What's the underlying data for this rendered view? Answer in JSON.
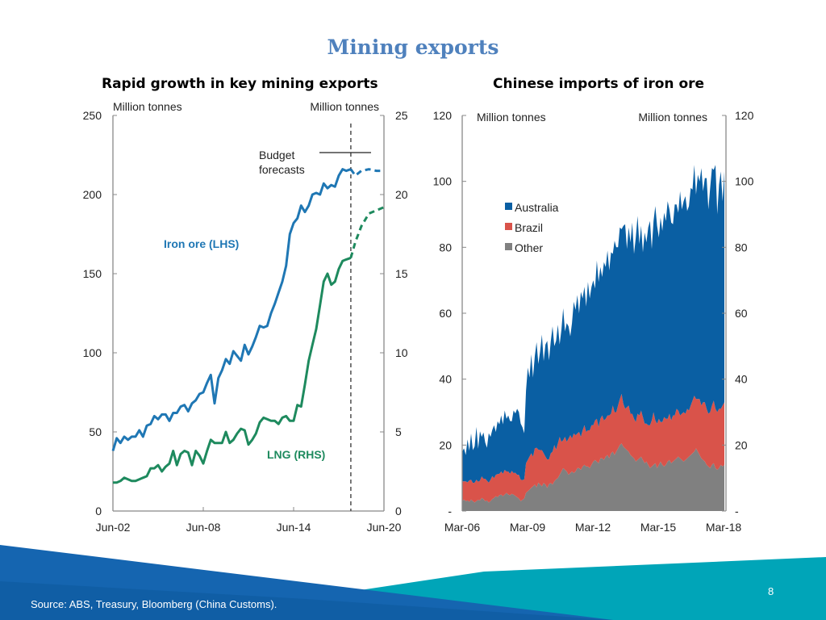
{
  "slide": {
    "title": "Mining exports",
    "source": "Source: ABS, Treasury, Bloomberg (China Customs).",
    "page_number": "8",
    "colors": {
      "title": "#4f81bd",
      "footer_blue": "#1565b0",
      "footer_teal": "#00a5b8"
    }
  },
  "chart_data": [
    {
      "type": "line",
      "title": "Rapid growth in key mining exports",
      "ylabel_left": "Million tonnes",
      "ylabel_right": "Million tonnes",
      "ylim_left": [
        0,
        250
      ],
      "ylim_right": [
        0,
        25
      ],
      "yticks_left": [
        "250",
        "200",
        "150",
        "100",
        "50",
        "0"
      ],
      "yticks_right": [
        "25",
        "20",
        "15",
        "10",
        "5",
        "0"
      ],
      "xticks": [
        "Jun-02",
        "Jun-08",
        "Jun-14",
        "Jun-20"
      ],
      "xlim": [
        2002.5,
        2020.5
      ],
      "forecast_start": 2018.3,
      "annotation": "Budget forecasts",
      "series": [
        {
          "name": "Iron ore (LHS)",
          "axis": "left",
          "color": "#1f77b4",
          "x": [
            2002.5,
            2002.75,
            2003.0,
            2003.25,
            2003.5,
            2003.75,
            2004.0,
            2004.25,
            2004.5,
            2004.75,
            2005.0,
            2005.25,
            2005.5,
            2005.75,
            2006.0,
            2006.25,
            2006.5,
            2006.75,
            2007.0,
            2007.25,
            2007.5,
            2007.75,
            2008.0,
            2008.25,
            2008.5,
            2008.75,
            2009.0,
            2009.25,
            2009.5,
            2009.75,
            2010.0,
            2010.25,
            2010.5,
            2010.75,
            2011.0,
            2011.25,
            2011.5,
            2011.75,
            2012.0,
            2012.25,
            2012.5,
            2012.75,
            2013.0,
            2013.25,
            2013.5,
            2013.75,
            2014.0,
            2014.25,
            2014.5,
            2014.75,
            2015.0,
            2015.25,
            2015.5,
            2015.75,
            2016.0,
            2016.25,
            2016.5,
            2016.75,
            2017.0,
            2017.25,
            2017.5,
            2017.75,
            2018.0,
            2018.3
          ],
          "y": [
            38,
            46,
            43,
            47,
            45,
            47,
            47,
            51,
            47,
            54,
            55,
            60,
            58,
            61,
            61,
            57,
            62,
            62,
            66,
            67,
            63,
            68,
            70,
            74,
            75,
            81,
            86,
            68,
            84,
            89,
            96,
            93,
            101,
            98,
            95,
            105,
            99,
            104,
            110,
            117,
            116,
            117,
            125,
            131,
            138,
            145,
            155,
            175,
            182,
            185,
            193,
            189,
            193,
            200,
            201,
            200,
            207,
            204,
            206,
            205,
            212,
            216,
            215,
            216
          ],
          "forecast": {
            "x": [
              2018.3,
              2018.6,
              2019.0,
              2019.5,
              2020.0,
              2020.5
            ],
            "y": [
              216,
              212,
              215,
              216,
              215,
              215
            ]
          }
        },
        {
          "name": "LNG (RHS)",
          "axis": "right",
          "color": "#1e8a5e",
          "x": [
            2002.5,
            2002.75,
            2003.0,
            2003.25,
            2003.5,
            2003.75,
            2004.0,
            2004.25,
            2004.5,
            2004.75,
            2005.0,
            2005.25,
            2005.5,
            2005.75,
            2006.0,
            2006.25,
            2006.5,
            2006.75,
            2007.0,
            2007.25,
            2007.5,
            2007.75,
            2008.0,
            2008.25,
            2008.5,
            2008.75,
            2009.0,
            2009.25,
            2009.5,
            2009.75,
            2010.0,
            2010.25,
            2010.5,
            2010.75,
            2011.0,
            2011.25,
            2011.5,
            2011.75,
            2012.0,
            2012.25,
            2012.5,
            2012.75,
            2013.0,
            2013.25,
            2013.5,
            2013.75,
            2014.0,
            2014.25,
            2014.5,
            2014.75,
            2015.0,
            2015.25,
            2015.5,
            2015.75,
            2016.0,
            2016.25,
            2016.5,
            2016.75,
            2017.0,
            2017.25,
            2017.5,
            2017.75,
            2018.0,
            2018.3
          ],
          "y": [
            1.8,
            1.8,
            1.9,
            2.1,
            2.0,
            1.9,
            1.9,
            2.0,
            2.1,
            2.2,
            2.7,
            2.7,
            2.9,
            2.5,
            2.8,
            3.0,
            3.8,
            2.9,
            3.6,
            3.8,
            3.7,
            2.9,
            3.8,
            3.5,
            3.0,
            3.8,
            4.5,
            4.3,
            4.3,
            4.3,
            5.0,
            4.3,
            4.5,
            4.9,
            5.2,
            5.1,
            4.2,
            4.5,
            4.9,
            5.6,
            5.9,
            5.8,
            5.7,
            5.7,
            5.5,
            5.9,
            6.0,
            5.7,
            5.7,
            6.7,
            6.6,
            8.0,
            9.5,
            10.5,
            11.5,
            13.0,
            14.5,
            15.0,
            14.3,
            14.5,
            15.3,
            15.8,
            15.9,
            16.0
          ],
          "forecast": {
            "x": [
              2018.3,
              2018.6,
              2019.0,
              2019.5,
              2020.0,
              2020.5
            ],
            "y": [
              16.0,
              17.0,
              18.0,
              18.8,
              19.0,
              19.2
            ]
          }
        }
      ],
      "labels": [
        {
          "text": "Iron ore (LHS)",
          "color": "#1f77b4"
        },
        {
          "text": "LNG (RHS)",
          "color": "#1e8a5e"
        }
      ]
    },
    {
      "type": "area",
      "stacked": true,
      "title": "Chinese imports of iron ore",
      "ylabel_left": "Million tonnes",
      "ylabel_right": "Million tonnes",
      "ylim": [
        0,
        120
      ],
      "yticks": [
        "120",
        "100",
        "80",
        "60",
        "40",
        "20",
        "-"
      ],
      "xticks": [
        "Mar-06",
        "Mar-09",
        "Mar-12",
        "Mar-15",
        "Mar-18"
      ],
      "xlim": [
        2006.2,
        2018.6
      ],
      "legend_position": "top-left",
      "x_start": 2006.2,
      "x_step_years": 0.0833,
      "series": [
        {
          "name": "Other",
          "color": "#808080",
          "values": [
            3,
            3.5,
            3,
            3.2,
            2.8,
            3.5,
            3,
            2.6,
            3,
            3.4,
            3.2,
            4,
            3.6,
            3,
            3.2,
            2.6,
            3,
            3.6,
            4,
            4.5,
            4.2,
            4.8,
            5,
            4.5,
            5,
            5.5,
            5,
            4.8,
            5.2,
            5,
            4.6,
            4.2,
            3.8,
            3,
            3.4,
            3.8,
            5.5,
            6,
            6.5,
            7,
            7.5,
            8,
            7.2,
            8.6,
            8,
            7.5,
            8.5,
            8,
            7,
            8.2,
            8.5,
            8,
            9,
            9.6,
            10,
            11,
            12,
            13,
            12.5,
            12,
            11,
            11.5,
            12,
            11.5,
            12,
            13,
            13,
            12.5,
            13.5,
            14,
            13.5,
            13.5,
            13,
            14,
            15,
            15.5,
            15,
            14.5,
            16,
            16,
            15.5,
            16.5,
            17,
            16,
            17.5,
            18,
            17,
            18,
            19,
            20,
            20.5,
            19.5,
            19,
            18.5,
            18,
            17,
            16.5,
            16,
            15,
            15.5,
            16,
            16.5,
            15.5,
            14.5,
            15,
            14,
            13,
            13.5,
            14,
            14.5,
            13,
            14,
            15,
            14,
            13.5,
            14,
            15,
            15.5,
            14.5,
            15,
            15.5,
            16,
            16.5,
            16,
            15.5,
            15,
            15.5,
            16,
            16.5,
            17,
            17.5,
            18,
            19,
            18,
            17,
            16,
            15.5,
            15,
            14,
            13.5,
            13,
            14,
            14.5,
            13,
            12.5,
            13,
            14,
            13.5,
            14
          ]
        },
        {
          "name": "Brazil",
          "color": "#d9534a",
          "values": [
            6,
            5.5,
            6,
            5.5,
            6.5,
            6,
            5.5,
            6,
            6.5,
            5.5,
            6,
            6.5,
            6.2,
            6.8,
            6,
            6,
            6.5,
            7,
            6,
            6.5,
            7,
            6.5,
            7,
            6.8,
            7.5,
            6.5,
            7,
            6.5,
            7,
            6.5,
            7,
            6.8,
            7.2,
            6.5,
            6,
            5.8,
            9,
            9.5,
            10,
            10.5,
            9,
            11,
            12,
            10,
            10.5,
            11,
            9,
            8.5,
            8.6,
            7.5,
            9,
            10,
            11,
            9,
            10.5,
            11.5,
            9,
            8.5,
            10,
            9,
            11,
            11.5,
            10,
            12,
            11,
            10.5,
            11,
            10,
            11,
            12,
            10.5,
            11,
            11.5,
            12,
            11,
            12,
            13,
            11,
            12,
            13,
            12,
            11.5,
            12,
            13,
            12,
            14,
            13,
            12,
            13,
            14,
            15,
            13,
            12,
            13,
            14,
            12.5,
            13,
            12,
            12,
            14,
            13,
            14,
            13,
            12,
            11.5,
            12,
            13,
            14,
            16,
            13,
            13.5,
            14,
            12,
            13,
            15,
            14,
            13,
            14,
            13,
            14,
            13.5,
            15,
            14,
            13,
            14,
            15,
            14,
            15,
            14,
            15,
            16,
            17,
            15,
            16,
            17,
            16,
            17.5,
            18,
            17,
            16,
            17,
            18,
            19,
            18,
            17.5,
            18,
            17,
            18.5,
            19
          ]
        },
        {
          "name": "Australia",
          "color": "#0a5fa3",
          "values": [
            9,
            10,
            8,
            13,
            9,
            14,
            10,
            11,
            16,
            10,
            15,
            12,
            14,
            11,
            10,
            15,
            13,
            14,
            16,
            13,
            16,
            15,
            17,
            15,
            18,
            16,
            17,
            16,
            15,
            19,
            18,
            20,
            19,
            17,
            16,
            14,
            22,
            28,
            24,
            30,
            24,
            28,
            32,
            26,
            30,
            35,
            28,
            34,
            36,
            30,
            34,
            38,
            30,
            33,
            36,
            28,
            34,
            40,
            32,
            36,
            34,
            30,
            35,
            40,
            38,
            42,
            36,
            44,
            40,
            42,
            38,
            45,
            40,
            42,
            44,
            40,
            48,
            44,
            46,
            42,
            48,
            46,
            50,
            44,
            49,
            46,
            52,
            50,
            48,
            52,
            50,
            54,
            56,
            48,
            54,
            52,
            58,
            50,
            56,
            60,
            52,
            56,
            50,
            58,
            55,
            60,
            62,
            52,
            58,
            65,
            60,
            55,
            62,
            58,
            62,
            60,
            66,
            62,
            60,
            58,
            64,
            62,
            60,
            68,
            62,
            64,
            66,
            60,
            62,
            66,
            64,
            70,
            62,
            68,
            66,
            72,
            64,
            68,
            70,
            62,
            68,
            72,
            70,
            74,
            60,
            68,
            72,
            62,
            70
          ]
        }
      ],
      "legend": [
        "Australia",
        "Brazil",
        "Other"
      ]
    }
  ]
}
